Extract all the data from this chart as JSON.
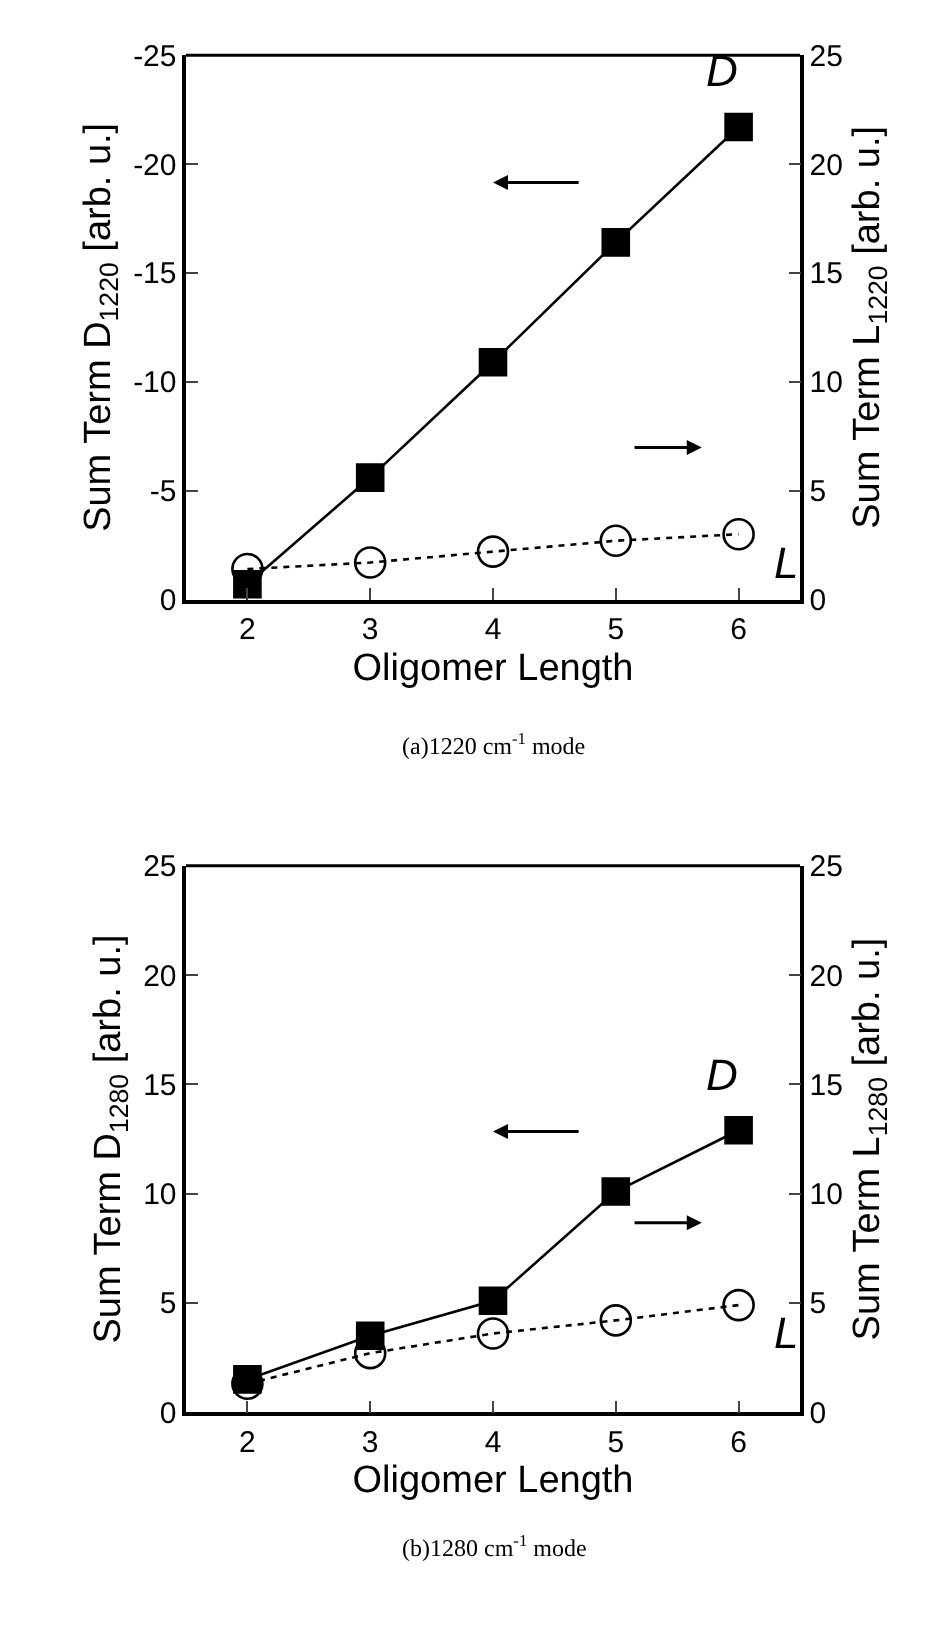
{
  "chart_data": [
    {
      "type": "line",
      "xlabel": "Oligomer Length",
      "ylabel": "Sum Term D$_{1220}$ [arb. u.]",
      "y2label": "Sum Term L$_{1220}$ [arb. u.]",
      "annotations": [
        "(a)1220 cm$^{-1}$ mode"
      ],
      "x": [
        2,
        3,
        4,
        5,
        6
      ],
      "xlim": [
        1.5,
        6.5
      ],
      "xticks": [
        2,
        3,
        4,
        5,
        6
      ],
      "ylim": [
        0,
        -25
      ],
      "yticks": [
        0,
        -5,
        -10,
        -15,
        -20,
        -25
      ],
      "y2lim": [
        0,
        25
      ],
      "y2ticks": [
        0,
        5,
        10,
        15,
        20,
        25
      ],
      "legend": false,
      "series": [
        {
          "name": "D",
          "color": "#000000",
          "values": [
            -0.7,
            -5.6,
            -10.9,
            -16.4,
            -21.7
          ],
          "marker": "square",
          "line_style": "solid"
        },
        {
          "name": "L",
          "color": "#000000",
          "values": [
            1.4,
            1.7,
            2.2,
            2.7,
            3.0
          ],
          "marker": "circle",
          "line_style": "dotted",
          "axis": "y2"
        }
      ]
    },
    {
      "type": "line",
      "xlabel": "Oligomer Length",
      "ylabel": "Sum Term D$_{1280}$ [arb. u.]",
      "y2label": "Sum Term L$_{1280}$ [arb. u.]",
      "annotations": [
        "(b)1280 cm$^{-1}$ mode"
      ],
      "x": [
        2,
        3,
        4,
        5,
        6
      ],
      "xlim": [
        1.5,
        6.5
      ],
      "xticks": [
        2,
        3,
        4,
        5,
        6
      ],
      "ylim": [
        0,
        25
      ],
      "yticks": [
        0,
        5,
        10,
        15,
        20,
        25
      ],
      "y2lim": [
        0,
        25
      ],
      "y2ticks": [
        0,
        5,
        10,
        15,
        20,
        25
      ],
      "legend": false,
      "series": [
        {
          "name": "D",
          "color": "#000000",
          "values": [
            1.5,
            3.5,
            5.1,
            10.1,
            12.9
          ],
          "marker": "square",
          "line_style": "solid"
        },
        {
          "name": "L",
          "color": "#000000",
          "values": [
            1.3,
            2.7,
            3.6,
            4.2,
            4.9
          ],
          "marker": "circle",
          "line_style": "dotted",
          "axis": "y2"
        }
      ]
    }
  ]
}
